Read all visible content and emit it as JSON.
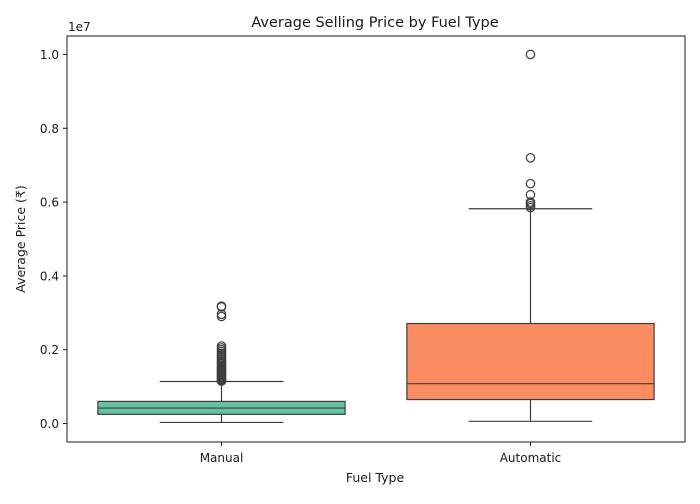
{
  "chart_data": {
    "type": "boxplot",
    "title": "Average Selling Price by Fuel Type",
    "xlabel": "Fuel Type",
    "ylabel": "Average Price (₹)",
    "y_offset_label": "1e7",
    "ylim": [
      -0.05,
      1.05
    ],
    "yticks": [
      0.0,
      0.2,
      0.4,
      0.6,
      0.8,
      1.0
    ],
    "ytick_labels": [
      "0.0",
      "0.2",
      "0.4",
      "0.6",
      "0.8",
      "1.0"
    ],
    "grid": false,
    "categories": [
      "Manual",
      "Automatic"
    ],
    "boxes": [
      {
        "category": "Manual",
        "color": "#66c2a5",
        "whisker_low": 0.003,
        "q1": 0.025,
        "median": 0.042,
        "q3": 0.06,
        "whisker_high": 0.114,
        "outliers": [
          0.115,
          0.118,
          0.121,
          0.124,
          0.127,
          0.13,
          0.133,
          0.136,
          0.139,
          0.142,
          0.145,
          0.148,
          0.151,
          0.155,
          0.158,
          0.162,
          0.165,
          0.17,
          0.175,
          0.18,
          0.185,
          0.19,
          0.195,
          0.2,
          0.205,
          0.21,
          0.29,
          0.296,
          0.316,
          0.318
        ]
      },
      {
        "category": "Automatic",
        "color": "#fc8d62",
        "whisker_low": 0.006,
        "q1": 0.065,
        "median": 0.108,
        "q3": 0.271,
        "whisker_high": 0.582,
        "outliers": [
          0.585,
          0.59,
          0.596,
          0.6,
          0.62,
          0.65,
          0.72,
          1.0
        ]
      }
    ]
  }
}
